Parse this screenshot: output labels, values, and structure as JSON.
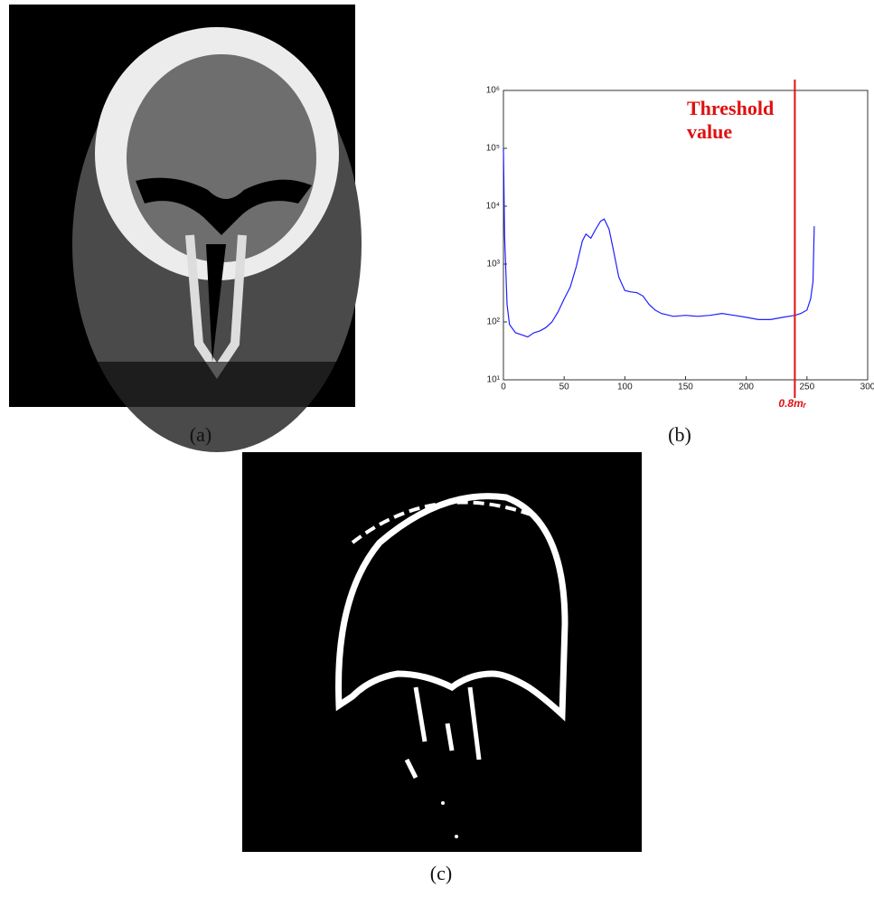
{
  "captions": {
    "a": "(a)",
    "b": "(b)",
    "c": "(c)"
  },
  "chart_data": {
    "type": "line",
    "yscale": "log",
    "color": "#1f1fff",
    "x": [
      0,
      1,
      3,
      5,
      10,
      15,
      20,
      25,
      30,
      35,
      40,
      45,
      50,
      55,
      60,
      65,
      68,
      72,
      76,
      80,
      83,
      87,
      90,
      95,
      100,
      105,
      110,
      115,
      120,
      125,
      130,
      140,
      150,
      160,
      170,
      180,
      190,
      200,
      210,
      220,
      230,
      240,
      245,
      250,
      253,
      255,
      256
    ],
    "values": [
      100000,
      3000,
      200,
      90,
      65,
      60,
      55,
      65,
      70,
      80,
      100,
      150,
      250,
      400,
      900,
      2500,
      3300,
      2800,
      4000,
      5500,
      6000,
      4000,
      2000,
      600,
      350,
      330,
      320,
      280,
      200,
      160,
      140,
      125,
      130,
      125,
      130,
      140,
      130,
      120,
      110,
      110,
      120,
      130,
      140,
      160,
      250,
      500,
      4500
    ],
    "xlim": [
      0,
      300
    ],
    "xticks": [
      0,
      50,
      100,
      150,
      200,
      250,
      300
    ],
    "ylim": [
      10,
      1000000
    ],
    "yticks": [
      {
        "value": 10,
        "label": "10¹"
      },
      {
        "value": 100,
        "label": "10²"
      },
      {
        "value": 1000,
        "label": "10³"
      },
      {
        "value": 10000,
        "label": "10⁴"
      },
      {
        "value": 100000,
        "label": "10⁵"
      },
      {
        "value": 1000000,
        "label": "10⁶"
      }
    ],
    "threshold": 240,
    "threshold_color": "#e01010",
    "annotation": [
      "Threshold",
      "value"
    ],
    "threshold_label": "0.8mᵣ"
  }
}
